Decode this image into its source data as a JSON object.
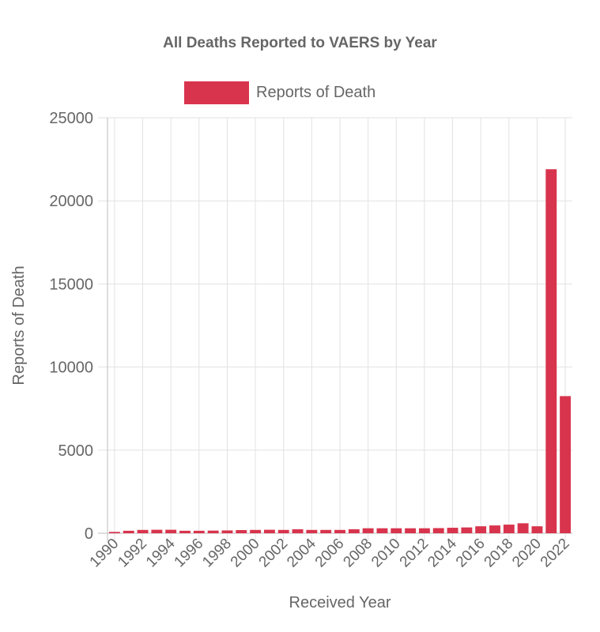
{
  "chart_data": {
    "type": "bar",
    "title": "All Deaths Reported to VAERS by Year",
    "xlabel": "Received Year",
    "ylabel": "Reports of Death",
    "ylim": [
      0,
      25000
    ],
    "yticks": [
      0,
      5000,
      10000,
      15000,
      20000,
      25000
    ],
    "grid": true,
    "legend_position": "top",
    "categories": [
      "1990",
      "1991",
      "1992",
      "1993",
      "1994",
      "1995",
      "1996",
      "1997",
      "1998",
      "1999",
      "2000",
      "2001",
      "2002",
      "2003",
      "2004",
      "2005",
      "2006",
      "2007",
      "2008",
      "2009",
      "2010",
      "2011",
      "2012",
      "2013",
      "2014",
      "2015",
      "2016",
      "2017",
      "2018",
      "2019",
      "2020",
      "2021",
      "2022"
    ],
    "tick_labels": [
      "1990",
      "1992",
      "1994",
      "1996",
      "1998",
      "2000",
      "2002",
      "2004",
      "2006",
      "2008",
      "2010",
      "2012",
      "2014",
      "2016",
      "2018",
      "2020",
      "2022"
    ],
    "series": [
      {
        "name": "Reports of Death",
        "color": "#d8344d",
        "values": [
          80,
          150,
          200,
          210,
          210,
          150,
          150,
          160,
          170,
          190,
          200,
          210,
          200,
          240,
          200,
          200,
          200,
          240,
          300,
          300,
          300,
          300,
          300,
          310,
          330,
          350,
          420,
          470,
          520,
          600,
          420,
          21900,
          8250
        ]
      }
    ]
  }
}
